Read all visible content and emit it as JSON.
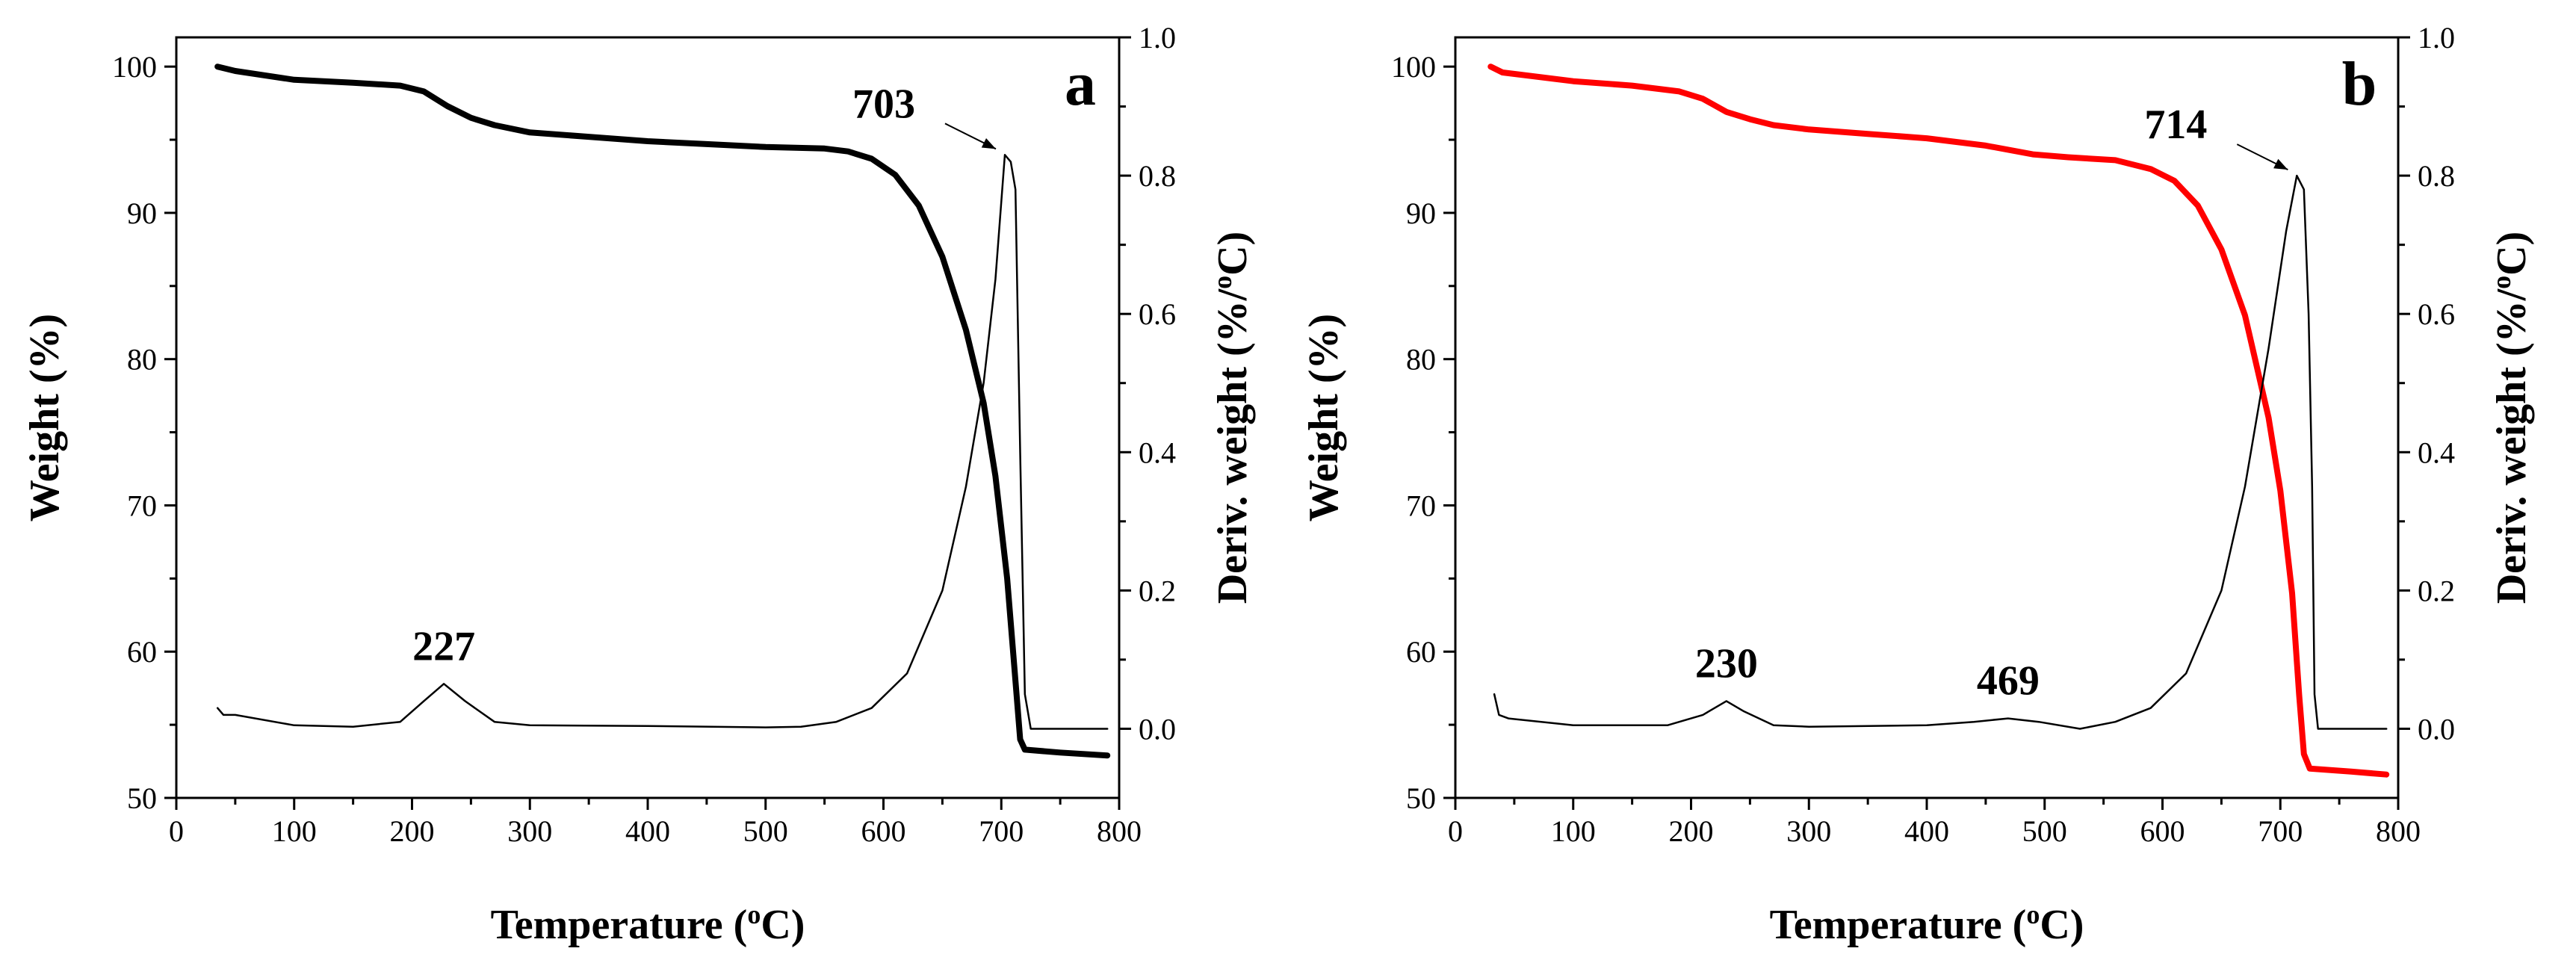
{
  "chart_data": [
    {
      "type": "line",
      "panel_label": "a",
      "xlabel": "Temperature (°C)",
      "xlabel_parts": [
        "Temperature (",
        "o",
        "C)"
      ],
      "ylabel": "Weight (%)",
      "y2label": "Deriv. weight (%/°C)",
      "y2label_parts": [
        "Deriv. weight (%/",
        "o",
        "C)"
      ],
      "xlim": [
        0,
        800
      ],
      "ylim": [
        50,
        102
      ],
      "y2lim": [
        -0.1,
        1.0
      ],
      "x_ticks": [
        0,
        100,
        200,
        300,
        400,
        500,
        600,
        700,
        800
      ],
      "y_ticks": [
        50,
        60,
        70,
        80,
        90,
        100
      ],
      "y2_ticks": [
        "0.0",
        "0.2",
        "0.4",
        "0.6",
        "0.8",
        "1.0"
      ],
      "series": [
        {
          "name": "Weight",
          "axis": "left",
          "color": "#000000",
          "width": "thick",
          "points": [
            [
              35,
              100
            ],
            [
              50,
              99.7
            ],
            [
              100,
              99.1
            ],
            [
              150,
              98.9
            ],
            [
              190,
              98.7
            ],
            [
              210,
              98.3
            ],
            [
              230,
              97.3
            ],
            [
              250,
              96.5
            ],
            [
              270,
              96.0
            ],
            [
              300,
              95.5
            ],
            [
              350,
              95.2
            ],
            [
              400,
              94.9
            ],
            [
              450,
              94.7
            ],
            [
              500,
              94.5
            ],
            [
              550,
              94.4
            ],
            [
              570,
              94.2
            ],
            [
              590,
              93.7
            ],
            [
              610,
              92.6
            ],
            [
              630,
              90.5
            ],
            [
              650,
              87.0
            ],
            [
              670,
              82.0
            ],
            [
              685,
              77.0
            ],
            [
              695,
              72.0
            ],
            [
              705,
              65.0
            ],
            [
              712,
              58.0
            ],
            [
              716,
              54.0
            ],
            [
              720,
              53.3
            ],
            [
              750,
              53.1
            ],
            [
              790,
              52.9
            ]
          ]
        },
        {
          "name": "Deriv. weight",
          "axis": "right",
          "color": "#000000",
          "width": "thin",
          "points": [
            [
              35,
              0.03
            ],
            [
              40,
              0.02
            ],
            [
              50,
              0.02
            ],
            [
              100,
              0.005
            ],
            [
              150,
              0.003
            ],
            [
              190,
              0.01
            ],
            [
              210,
              0.04
            ],
            [
              227,
              0.065
            ],
            [
              245,
              0.04
            ],
            [
              270,
              0.01
            ],
            [
              300,
              0.005
            ],
            [
              400,
              0.004
            ],
            [
              500,
              0.002
            ],
            [
              530,
              0.003
            ],
            [
              560,
              0.01
            ],
            [
              590,
              0.03
            ],
            [
              620,
              0.08
            ],
            [
              650,
              0.2
            ],
            [
              670,
              0.35
            ],
            [
              685,
              0.5
            ],
            [
              695,
              0.65
            ],
            [
              703,
              0.83
            ],
            [
              708,
              0.82
            ],
            [
              712,
              0.78
            ],
            [
              716,
              0.4
            ],
            [
              720,
              0.05
            ],
            [
              725,
              0.0
            ],
            [
              790,
              0.0
            ]
          ]
        }
      ],
      "annotations": [
        {
          "text": "227",
          "x": 227,
          "y": 0.065,
          "axis": "right",
          "arrow": false
        },
        {
          "text": "703",
          "x": 703,
          "y": 0.83,
          "axis": "right",
          "arrow": true
        }
      ]
    },
    {
      "type": "line",
      "panel_label": "b",
      "xlabel": "Temperature (°C)",
      "xlabel_parts": [
        "Temperature (",
        "o",
        "C)"
      ],
      "ylabel": "Weight (%)",
      "y2label": "Deriv. weight (%/°C)",
      "y2label_parts": [
        "Deriv. weight (%/",
        "o",
        "C)"
      ],
      "xlim": [
        0,
        800
      ],
      "ylim": [
        50,
        102
      ],
      "y2lim": [
        -0.1,
        1.0
      ],
      "x_ticks": [
        0,
        100,
        200,
        300,
        400,
        500,
        600,
        700,
        800
      ],
      "y_ticks": [
        50,
        60,
        70,
        80,
        90,
        100
      ],
      "y2_ticks": [
        "0.0",
        "0.2",
        "0.4",
        "0.6",
        "0.8",
        "1.0"
      ],
      "series": [
        {
          "name": "Weight",
          "axis": "left",
          "color": "#ff0000",
          "width": "thick",
          "points": [
            [
              30,
              100
            ],
            [
              40,
              99.6
            ],
            [
              100,
              99.0
            ],
            [
              150,
              98.7
            ],
            [
              190,
              98.3
            ],
            [
              210,
              97.8
            ],
            [
              230,
              96.9
            ],
            [
              250,
              96.4
            ],
            [
              270,
              96.0
            ],
            [
              300,
              95.7
            ],
            [
              350,
              95.4
            ],
            [
              400,
              95.1
            ],
            [
              450,
              94.6
            ],
            [
              490,
              94.0
            ],
            [
              520,
              93.8
            ],
            [
              560,
              93.6
            ],
            [
              590,
              93.0
            ],
            [
              610,
              92.2
            ],
            [
              630,
              90.5
            ],
            [
              650,
              87.5
            ],
            [
              670,
              83.0
            ],
            [
              690,
              76.0
            ],
            [
              700,
              71.0
            ],
            [
              710,
              64.0
            ],
            [
              716,
              57.0
            ],
            [
              720,
              53.0
            ],
            [
              725,
              52.0
            ],
            [
              760,
              51.8
            ],
            [
              790,
              51.6
            ]
          ]
        },
        {
          "name": "Deriv. weight",
          "axis": "right",
          "color": "#000000",
          "width": "thin",
          "points": [
            [
              33,
              0.05
            ],
            [
              37,
              0.02
            ],
            [
              45,
              0.015
            ],
            [
              100,
              0.005
            ],
            [
              180,
              0.005
            ],
            [
              210,
              0.02
            ],
            [
              230,
              0.04
            ],
            [
              245,
              0.025
            ],
            [
              270,
              0.005
            ],
            [
              300,
              0.003
            ],
            [
              400,
              0.005
            ],
            [
              440,
              0.01
            ],
            [
              469,
              0.015
            ],
            [
              495,
              0.01
            ],
            [
              530,
              0.0
            ],
            [
              560,
              0.01
            ],
            [
              590,
              0.03
            ],
            [
              620,
              0.08
            ],
            [
              650,
              0.2
            ],
            [
              670,
              0.35
            ],
            [
              690,
              0.55
            ],
            [
              705,
              0.72
            ],
            [
              714,
              0.8
            ],
            [
              720,
              0.78
            ],
            [
              724,
              0.6
            ],
            [
              727,
              0.35
            ],
            [
              729,
              0.05
            ],
            [
              732,
              0.0
            ],
            [
              790,
              0.0
            ]
          ]
        }
      ],
      "annotations": [
        {
          "text": "230",
          "x": 230,
          "y": 0.04,
          "axis": "right",
          "arrow": false
        },
        {
          "text": "469",
          "x": 469,
          "y": 0.015,
          "axis": "right",
          "arrow": false
        },
        {
          "text": "714",
          "x": 714,
          "y": 0.8,
          "axis": "right",
          "arrow": true
        }
      ]
    }
  ]
}
